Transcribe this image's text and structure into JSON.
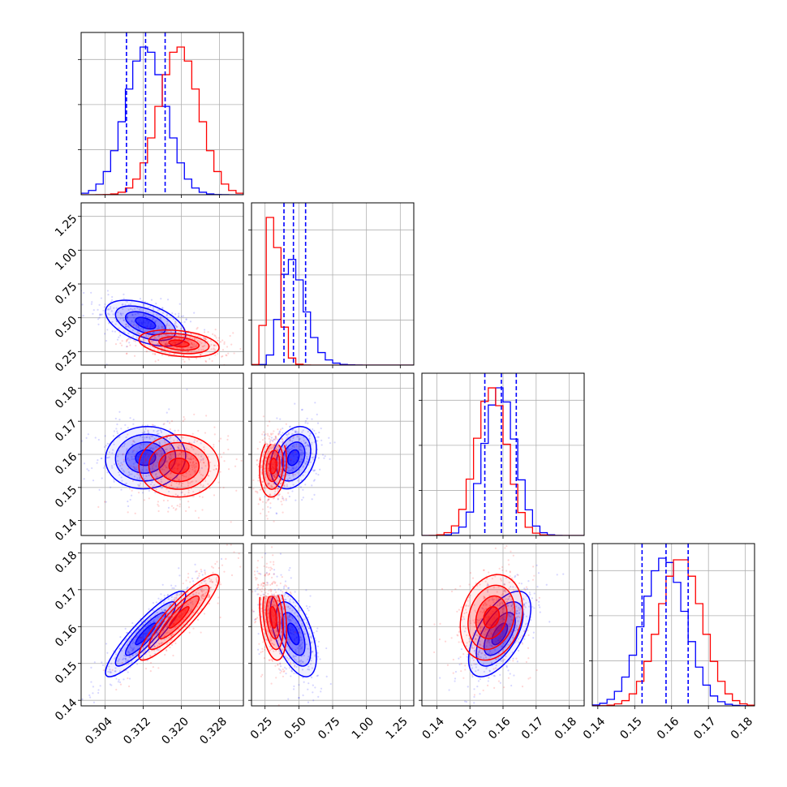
{
  "chart_data": {
    "type": "corner",
    "title": "",
    "parameters": [
      {
        "label": "",
        "range": [
          0.299,
          0.333
        ],
        "ticks": [
          "0.304",
          "0.312",
          "0.320",
          "0.328"
        ],
        "tick_values": [
          0.304,
          0.312,
          0.32,
          0.328
        ]
      },
      {
        "label": "",
        "range": [
          0.15,
          1.35
        ],
        "ticks": [
          "0.25",
          "0.50",
          "0.75",
          "1.00",
          "1.25"
        ],
        "tick_values": [
          0.25,
          0.5,
          0.75,
          1.0,
          1.25
        ]
      },
      {
        "label": "",
        "range": [
          0.1355,
          0.1845
        ],
        "ticks": [
          "0.14",
          "0.15",
          "0.16",
          "0.17",
          "0.18"
        ],
        "tick_values": [
          0.14,
          0.15,
          0.16,
          0.17,
          0.18
        ]
      },
      {
        "label": "",
        "range": [
          0.1385,
          0.1825
        ],
        "ticks": [
          "0.14",
          "0.15",
          "0.16",
          "0.17",
          "0.18"
        ],
        "tick_values": [
          0.14,
          0.15,
          0.16,
          0.17,
          0.18
        ]
      }
    ],
    "series": [
      {
        "color": "#0000ff",
        "means": [
          0.3125,
          0.46,
          0.159,
          0.158
        ],
        "sigmas": [
          0.0042,
          0.085,
          0.0047,
          0.0058
        ],
        "quantiles": [
          [
            0.3085,
            0.3125,
            0.3166
          ],
          [
            0.39,
            0.46,
            0.55
          ],
          [
            0.1545,
            0.1595,
            0.164
          ],
          [
            0.152,
            0.1585,
            0.1645
          ]
        ],
        "correlations": {
          "1-0": -0.5,
          "2-0": 0.05,
          "2-1": 0.3,
          "3-0": 0.9,
          "3-1": -0.55,
          "3-2": 0.6
        }
      },
      {
        "color": "#ff0000",
        "means": [
          0.3195,
          0.31,
          0.1565,
          0.1625
        ],
        "sigmas": [
          0.0042,
          0.05,
          0.0047,
          0.0058
        ],
        "quantiles": null,
        "correlations": {
          "1-0": -0.3,
          "2-0": 0.0,
          "2-1": 0.15,
          "3-0": 0.9,
          "3-1": -0.3,
          "3-2": 0.2
        }
      }
    ],
    "grid": true,
    "quantile_lines": "dashed blue on diagonal histograms"
  }
}
